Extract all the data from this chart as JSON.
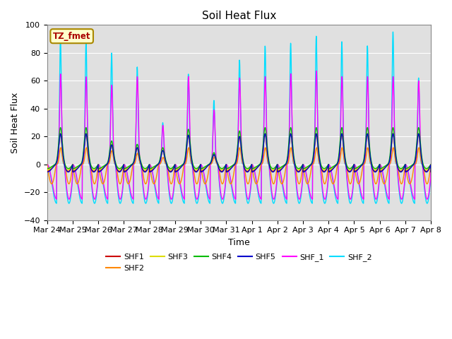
{
  "title": "Soil Heat Flux",
  "ylabel": "Soil Heat Flux",
  "xlabel": "Time",
  "ylim": [
    -40,
    100
  ],
  "series_names": [
    "SHF1",
    "SHF2",
    "SHF3",
    "SHF4",
    "SHF5",
    "SHF_1",
    "SHF_2"
  ],
  "series_colors": [
    "#cc0000",
    "#ff8800",
    "#dddd00",
    "#00bb00",
    "#0000cc",
    "#ff00ff",
    "#00ddff"
  ],
  "xtick_labels": [
    "Mar 24",
    "Mar 25",
    "Mar 26",
    "Mar 27",
    "Mar 28",
    "Mar 29",
    "Mar 30",
    "Mar 31",
    "Apr 1",
    "Apr 2",
    "Apr 3",
    "Apr 4",
    "Apr 5",
    "Apr 6",
    "Apr 7",
    "Apr 8"
  ],
  "annotation_text": "TZ_fmet",
  "annotation_color": "#aa0000",
  "annotation_bg": "#ffffcc",
  "annotation_border": "#aa8800",
  "n_days": 15,
  "pts_per_day": 144,
  "background_color": "#e0e0e0",
  "grid_color": "#ffffff",
  "day_peak_shf2": [
    90,
    88,
    80,
    70,
    30,
    65,
    46,
    75,
    85,
    87,
    92,
    88,
    85,
    95,
    62
  ],
  "day_peak_shf1": [
    65,
    63,
    57,
    63,
    28,
    63,
    39,
    62,
    63,
    65,
    67,
    63,
    63,
    63,
    60
  ],
  "figsize": [
    6.4,
    4.8
  ],
  "dpi": 100
}
